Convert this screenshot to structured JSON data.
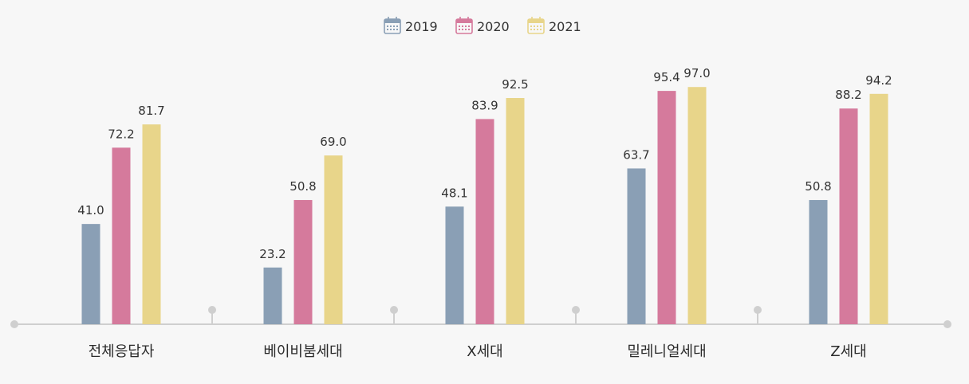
{
  "chart_data": {
    "type": "bar",
    "categories": [
      "전체응답자",
      "베이비붐세대",
      "X세대",
      "밀레니얼세대",
      "Z세대"
    ],
    "series": [
      {
        "name": "2019",
        "color": "#8a9fb5",
        "values": [
          41.0,
          23.2,
          48.1,
          63.7,
          50.8
        ]
      },
      {
        "name": "2020",
        "color": "#d57a9c",
        "values": [
          72.2,
          50.8,
          83.9,
          95.4,
          88.2
        ]
      },
      {
        "name": "2021",
        "color": "#e8d58a",
        "values": [
          81.7,
          69.0,
          92.5,
          97.0,
          94.2
        ]
      }
    ],
    "legend": {
      "placement": "top-center",
      "icon": "calendar-icon"
    },
    "ylim": [
      0,
      100
    ],
    "grid": false,
    "title": "",
    "xlabel": "",
    "ylabel": ""
  }
}
